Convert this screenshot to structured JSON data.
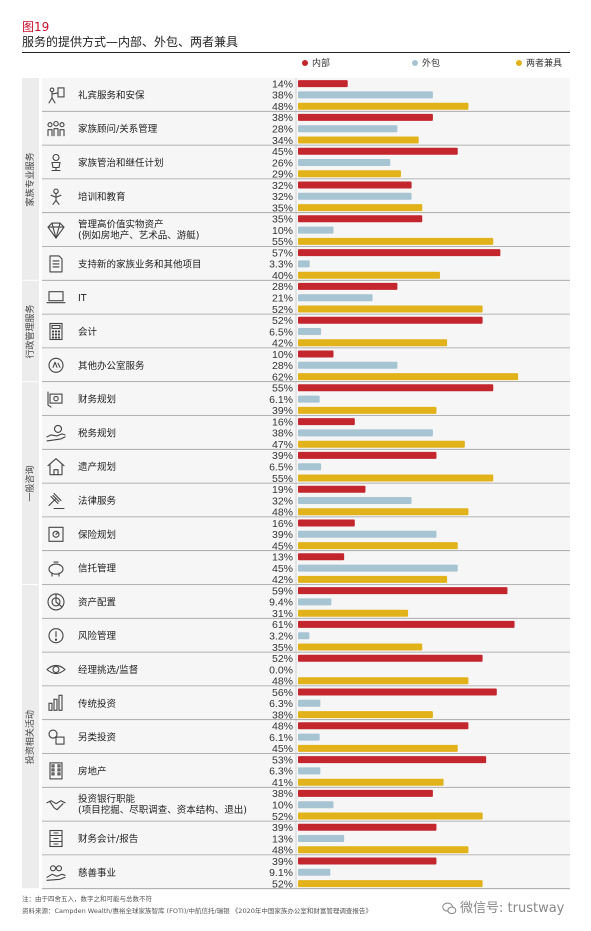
{
  "figure_label": "图19",
  "figure_title": "服务的提供方式—内部、外包、两者兼具",
  "footnote": "注：由于四舍五入，数字之和可能与总数不符",
  "source": "资料来源：Campden Wealth/惠裕全球家族智库 (FOTI)/中航信托/瑞银 《2020年中国家族办公室和财富管理调查报告》",
  "watermark": "微信号: trustway",
  "colors": {
    "internal": "#c4262e",
    "outsourced": "#a7c4d3",
    "both": "#e2b21b",
    "group_bg": "#ececec"
  },
  "chart_data": {
    "type": "bar",
    "orientation": "horizontal",
    "value_unit": "%",
    "xlim": [
      0,
      65
    ],
    "grid": false,
    "legend_position": "top-right",
    "series": [
      {
        "name": "内部",
        "color": "#c4262e"
      },
      {
        "name": "外包",
        "color": "#a7c4d3"
      },
      {
        "name": "两者兼具",
        "color": "#e2b21b"
      }
    ],
    "groups": [
      {
        "name": "家族专业服务",
        "items": [
          {
            "label": [
              "礼宾服务和安保"
            ],
            "icon": "concierge-icon",
            "values": [
              14,
              38,
              48
            ],
            "labels": [
              "14%",
              "38%",
              "48%"
            ]
          },
          {
            "label": [
              "家族顾问/关系管理"
            ],
            "icon": "family-people-icon",
            "values": [
              38,
              28,
              34
            ],
            "labels": [
              "38%",
              "28%",
              "34%"
            ]
          },
          {
            "label": [
              "家族管治和继任计划"
            ],
            "icon": "governance-icon",
            "values": [
              45,
              26,
              29
            ],
            "labels": [
              "45%",
              "26%",
              "29%"
            ]
          },
          {
            "label": [
              "培训和教育"
            ],
            "icon": "education-icon",
            "values": [
              32,
              32,
              35
            ],
            "labels": [
              "32%",
              "32%",
              "35%"
            ]
          },
          {
            "label": [
              "管理高价值实物资产",
              "(例如房地产、艺术品、游艇)"
            ],
            "icon": "diamond-icon",
            "values": [
              35,
              10,
              55
            ],
            "labels": [
              "35%",
              "10%",
              "55%"
            ]
          },
          {
            "label": [
              "支持新的家族业务和其他项目"
            ],
            "icon": "document-icon",
            "values": [
              57,
              3.3,
              40
            ],
            "labels": [
              "57%",
              "3.3%",
              "40%"
            ]
          }
        ]
      },
      {
        "name": "行政管理服务",
        "items": [
          {
            "label": [
              "IT"
            ],
            "icon": "laptop-icon",
            "values": [
              28,
              21,
              52
            ],
            "labels": [
              "28%",
              "21%",
              "52%"
            ]
          },
          {
            "label": [
              "会计"
            ],
            "icon": "calculator-icon",
            "values": [
              52,
              6.5,
              42
            ],
            "labels": [
              "52%",
              "6.5%",
              "42%"
            ]
          },
          {
            "label": [
              "其他办公室服务"
            ],
            "icon": "office-service-icon",
            "values": [
              10,
              28,
              62
            ],
            "labels": [
              "10%",
              "28%",
              "62%"
            ]
          }
        ]
      },
      {
        "name": "一般咨询",
        "items": [
          {
            "label": [
              "财务规划"
            ],
            "icon": "money-plan-icon",
            "values": [
              55,
              6.1,
              39
            ],
            "labels": [
              "55%",
              "6.1%",
              "39%"
            ]
          },
          {
            "label": [
              "税务规划"
            ],
            "icon": "tax-hand-icon",
            "values": [
              16,
              38,
              47
            ],
            "labels": [
              "16%",
              "38%",
              "47%"
            ]
          },
          {
            "label": [
              "遗产规划"
            ],
            "icon": "house-icon",
            "values": [
              39,
              6.5,
              55
            ],
            "labels": [
              "39%",
              "6.5%",
              "55%"
            ]
          },
          {
            "label": [
              "法律服务"
            ],
            "icon": "gavel-icon",
            "values": [
              19,
              32,
              48
            ],
            "labels": [
              "19%",
              "32%",
              "48%"
            ]
          },
          {
            "label": [
              "保险规划"
            ],
            "icon": "safe-icon",
            "values": [
              16,
              39,
              45
            ],
            "labels": [
              "16%",
              "39%",
              "45%"
            ]
          },
          {
            "label": [
              "信托管理"
            ],
            "icon": "piggy-bank-icon",
            "values": [
              13,
              45,
              42
            ],
            "labels": [
              "13%",
              "45%",
              "42%"
            ]
          }
        ]
      },
      {
        "name": "投资相关活动",
        "items": [
          {
            "label": [
              "资产配置"
            ],
            "icon": "asset-allocation-icon",
            "values": [
              59,
              9.4,
              31
            ],
            "labels": [
              "59%",
              "9.4%",
              "31%"
            ]
          },
          {
            "label": [
              "风险管理"
            ],
            "icon": "risk-icon",
            "values": [
              61,
              3.2,
              35
            ],
            "labels": [
              "61%",
              "3.2%",
              "35%"
            ]
          },
          {
            "label": [
              "经理挑选/监督"
            ],
            "icon": "eye-icon",
            "values": [
              52,
              0.0,
              48
            ],
            "labels": [
              "52%",
              "0.0%",
              "48%"
            ]
          },
          {
            "label": [
              "传统投资"
            ],
            "icon": "bar-chart-icon",
            "values": [
              56,
              6.3,
              38
            ],
            "labels": [
              "56%",
              "6.3%",
              "38%"
            ]
          },
          {
            "label": [
              "另类投资"
            ],
            "icon": "alternative-icon",
            "values": [
              48,
              6.1,
              45
            ],
            "labels": [
              "48%",
              "6.1%",
              "45%"
            ]
          },
          {
            "label": [
              "房地产"
            ],
            "icon": "building-icon",
            "values": [
              53,
              6.3,
              41
            ],
            "labels": [
              "53%",
              "6.3%",
              "41%"
            ]
          },
          {
            "label": [
              "投资银行职能",
              "(项目挖掘、尽职调查、资本结构、退出)"
            ],
            "icon": "handshake-icon",
            "values": [
              38,
              10,
              52
            ],
            "labels": [
              "38%",
              "10%",
              "52%"
            ]
          },
          {
            "label": [
              "财务会计/报告"
            ],
            "icon": "cabinet-icon",
            "values": [
              39,
              13,
              48
            ],
            "labels": [
              "39%",
              "13%",
              "48%"
            ]
          },
          {
            "label": [
              "慈善事业"
            ],
            "icon": "charity-icon",
            "values": [
              39,
              9.1,
              52
            ],
            "labels": [
              "39%",
              "9.1%",
              "52%"
            ]
          }
        ]
      }
    ]
  }
}
